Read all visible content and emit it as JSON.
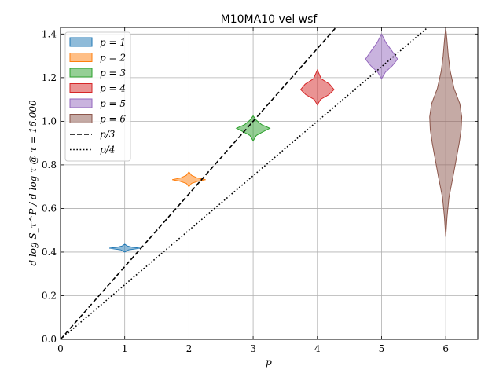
{
  "chart_data": {
    "type": "violin",
    "title": "M10MA10 vel wsf",
    "xlabel": "p",
    "ylabel": "d log S_τ^P / d log τ @ τ = 16.000",
    "xlim": [
      0,
      6.5
    ],
    "ylim": [
      0,
      1.43
    ],
    "xticks": [
      "0",
      "1",
      "2",
      "3",
      "4",
      "5",
      "6"
    ],
    "yticks": [
      "0.0",
      "0.2",
      "0.4",
      "0.6",
      "0.8",
      "1.0",
      "1.2",
      "1.4"
    ],
    "grid": true,
    "legend_position": "top-left",
    "violins": [
      {
        "name": "p = 1",
        "x": 1,
        "color": "#1f77b4",
        "profile": [
          [
            0.4,
            0.0
          ],
          [
            0.41,
            0.06
          ],
          [
            0.414,
            0.16
          ],
          [
            0.418,
            0.24
          ],
          [
            0.422,
            0.12
          ],
          [
            0.428,
            0.04
          ],
          [
            0.436,
            0.0
          ]
        ]
      },
      {
        "name": "p = 2",
        "x": 2,
        "color": "#ff7f0e",
        "profile": [
          [
            0.7,
            0.0
          ],
          [
            0.715,
            0.04
          ],
          [
            0.725,
            0.14
          ],
          [
            0.732,
            0.26
          ],
          [
            0.74,
            0.13
          ],
          [
            0.752,
            0.04
          ],
          [
            0.768,
            0.0
          ]
        ]
      },
      {
        "name": "p = 3",
        "x": 3,
        "color": "#2ca02c",
        "profile": [
          [
            0.91,
            0.0
          ],
          [
            0.935,
            0.05
          ],
          [
            0.95,
            0.14
          ],
          [
            0.968,
            0.26
          ],
          [
            0.985,
            0.13
          ],
          [
            1.005,
            0.05
          ],
          [
            1.025,
            0.0
          ]
        ]
      },
      {
        "name": "p = 4",
        "x": 4,
        "color": "#d62728",
        "profile": [
          [
            1.075,
            0.0
          ],
          [
            1.1,
            0.05
          ],
          [
            1.122,
            0.18
          ],
          [
            1.145,
            0.26
          ],
          [
            1.17,
            0.19
          ],
          [
            1.195,
            0.06
          ],
          [
            1.235,
            0.0
          ]
        ]
      },
      {
        "name": "p = 5",
        "x": 5,
        "color": "#9467bd",
        "profile": [
          [
            1.195,
            0.0
          ],
          [
            1.225,
            0.06
          ],
          [
            1.255,
            0.17
          ],
          [
            1.285,
            0.25
          ],
          [
            1.315,
            0.18
          ],
          [
            1.36,
            0.07
          ],
          [
            1.4,
            0.0
          ]
        ]
      },
      {
        "name": "p = 6",
        "x": 6,
        "color": "#8c564b",
        "profile": [
          [
            0.47,
            0.0
          ],
          [
            0.56,
            0.02
          ],
          [
            0.65,
            0.05
          ],
          [
            0.74,
            0.11
          ],
          [
            0.82,
            0.16
          ],
          [
            0.9,
            0.21
          ],
          [
            0.96,
            0.24
          ],
          [
            1.02,
            0.25
          ],
          [
            1.08,
            0.22
          ],
          [
            1.15,
            0.13
          ],
          [
            1.23,
            0.07
          ],
          [
            1.3,
            0.04
          ],
          [
            1.37,
            0.02
          ],
          [
            1.43,
            0.0
          ]
        ]
      }
    ],
    "lines": [
      {
        "name": "p/3",
        "style": "dashed",
        "slope": 0.3333333,
        "color": "#000000"
      },
      {
        "name": "p/4",
        "style": "dotted",
        "slope": 0.25,
        "color": "#000000"
      }
    ],
    "legend_entries": [
      {
        "label": "p = 1",
        "color": "#1f77b4",
        "kind": "patch"
      },
      {
        "label": "p = 2",
        "color": "#ff7f0e",
        "kind": "patch"
      },
      {
        "label": "p = 3",
        "color": "#2ca02c",
        "kind": "patch"
      },
      {
        "label": "p = 4",
        "color": "#d62728",
        "kind": "patch"
      },
      {
        "label": "p = 5",
        "color": "#9467bd",
        "kind": "patch"
      },
      {
        "label": "p = 6",
        "color": "#8c564b",
        "kind": "patch"
      },
      {
        "label": "p/3",
        "color": "#000000",
        "kind": "dashed"
      },
      {
        "label": "p/4",
        "color": "#000000",
        "kind": "dotted"
      }
    ]
  }
}
